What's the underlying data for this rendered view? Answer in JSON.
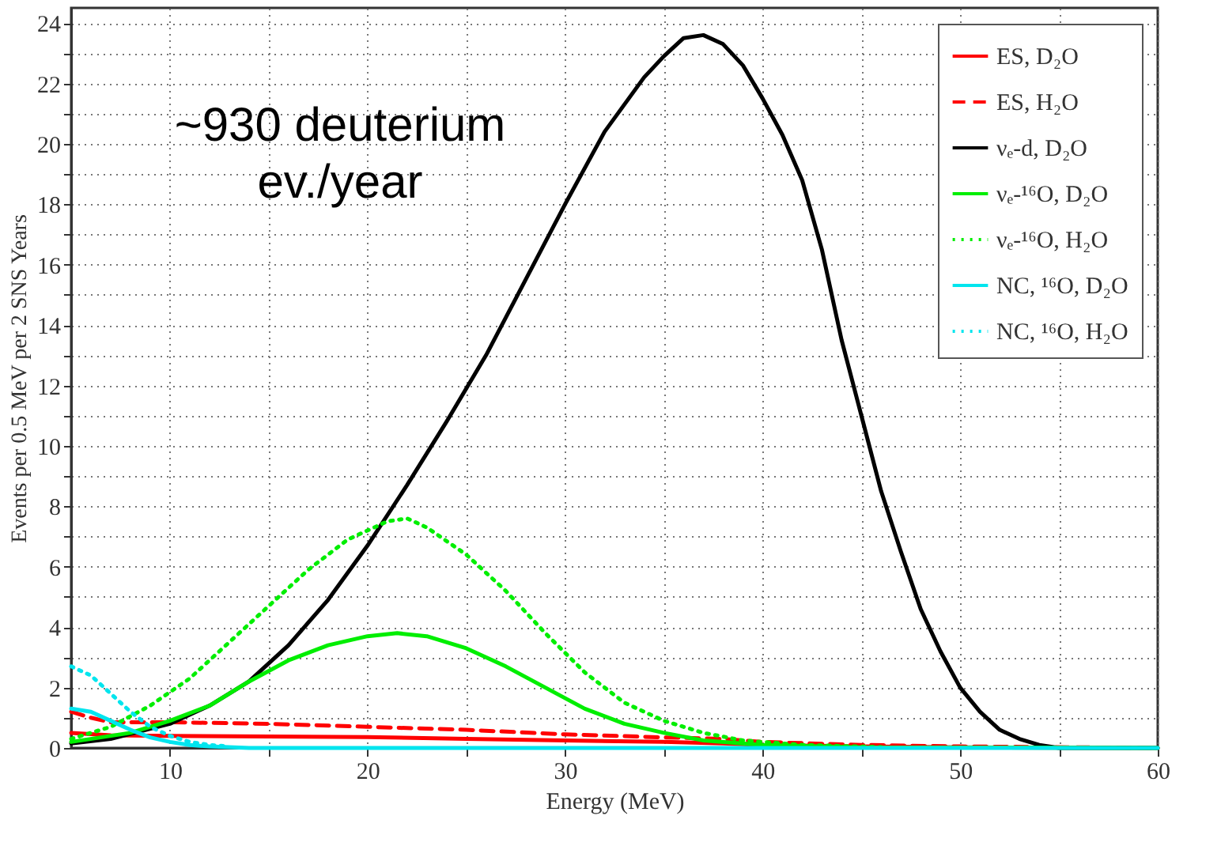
{
  "chart_data": {
    "type": "line",
    "xlabel": "Energy (MeV)",
    "ylabel": "Events per 0.5 MeV per 2 SNS Years",
    "annotations": [
      "~930 deuterium\nev./year"
    ],
    "xlim": [
      5,
      60
    ],
    "ylim": [
      0,
      24.5
    ],
    "xticks": [
      10,
      {
        "value": 15,
        "label": null
      },
      20,
      {
        "value": 25,
        "label": null
      },
      30,
      {
        "value": 35,
        "label": null
      },
      40,
      {
        "value": 45,
        "label": null
      },
      50,
      {
        "value": 55,
        "label": null
      },
      60
    ],
    "yticks": [
      0,
      {
        "value": 1,
        "label": null
      },
      2,
      {
        "value": 3,
        "label": null
      },
      4,
      {
        "value": 5,
        "label": null
      },
      6,
      {
        "value": 7,
        "label": null
      },
      8,
      {
        "value": 9,
        "label": null
      },
      10,
      {
        "value": 11,
        "label": null
      },
      12,
      {
        "value": 13,
        "label": null
      },
      14,
      {
        "value": 15,
        "label": null
      },
      16,
      {
        "value": 17,
        "label": null
      },
      18,
      {
        "value": 19,
        "label": null
      },
      20,
      {
        "value": 21,
        "label": null
      },
      22,
      {
        "value": 23,
        "label": null
      },
      24
    ],
    "grid": true,
    "legend": "top right",
    "series": [
      {
        "name": "ES, D₂O",
        "color": "#ff0000",
        "line_style": "solid",
        "x": [
          5,
          7,
          10,
          15,
          20,
          25,
          30,
          35,
          38,
          40,
          45,
          50,
          60
        ],
        "values": [
          0.5,
          0.42,
          0.4,
          0.38,
          0.36,
          0.3,
          0.25,
          0.2,
          0.15,
          0.1,
          0.05,
          0.02,
          0
        ]
      },
      {
        "name": "ES, H₂O",
        "color": "#ff0000",
        "line_style": "dashed",
        "x": [
          5,
          6,
          7,
          10,
          15,
          20,
          25,
          30,
          35,
          38,
          40,
          45,
          50,
          60
        ],
        "values": [
          1.2,
          1.0,
          0.85,
          0.85,
          0.8,
          0.7,
          0.6,
          0.45,
          0.35,
          0.3,
          0.2,
          0.1,
          0.05,
          0
        ]
      },
      {
        "name": "νₑ-d, D₂O",
        "color": "#000000",
        "line_style": "solid",
        "x": [
          5,
          7,
          10,
          12,
          14,
          16,
          18,
          20,
          22,
          24,
          26,
          28,
          30,
          32,
          34,
          35,
          36,
          37,
          38,
          39,
          40,
          41,
          42,
          43,
          44,
          45,
          46,
          47,
          48,
          49,
          50,
          51,
          52,
          53,
          54,
          55,
          60
        ],
        "values": [
          0.15,
          0.3,
          0.8,
          1.4,
          2.2,
          3.4,
          4.9,
          6.7,
          8.7,
          10.8,
          13.0,
          15.5,
          18.0,
          20.4,
          22.2,
          22.9,
          23.5,
          23.6,
          23.3,
          22.6,
          21.5,
          20.3,
          18.8,
          16.5,
          13.5,
          11.0,
          8.5,
          6.5,
          4.6,
          3.2,
          2.0,
          1.2,
          0.6,
          0.3,
          0.1,
          0,
          0
        ]
      },
      {
        "name": "νₑ-¹⁶O, D₂O",
        "color": "#00ee00",
        "line_style": "solid",
        "x": [
          5,
          8,
          10,
          12,
          14,
          16,
          18,
          20,
          21.5,
          23,
          25,
          27,
          29,
          31,
          33,
          35,
          37,
          40,
          45,
          60
        ],
        "values": [
          0.2,
          0.5,
          0.9,
          1.4,
          2.2,
          2.9,
          3.4,
          3.7,
          3.8,
          3.7,
          3.3,
          2.7,
          2.0,
          1.3,
          0.8,
          0.5,
          0.25,
          0.1,
          0.02,
          0
        ]
      },
      {
        "name": "νₑ-¹⁶O, H₂O",
        "color": "#00ee00",
        "line_style": "dotted",
        "x": [
          5,
          7,
          9,
          11,
          13,
          15,
          17,
          19,
          21,
          22,
          23,
          25,
          27,
          29,
          31,
          33,
          35,
          37,
          39,
          42,
          46
        ],
        "values": [
          0.3,
          0.7,
          1.4,
          2.3,
          3.5,
          4.7,
          5.9,
          6.9,
          7.5,
          7.6,
          7.3,
          6.4,
          5.2,
          3.8,
          2.5,
          1.5,
          0.9,
          0.5,
          0.25,
          0.1,
          0.03
        ]
      },
      {
        "name": "NC, ¹⁶O, D₂O",
        "color": "#00e5ee",
        "line_style": "solid",
        "x": [
          5,
          6,
          7,
          8,
          9,
          10,
          11,
          12,
          14,
          60
        ],
        "values": [
          1.3,
          1.2,
          0.9,
          0.6,
          0.35,
          0.2,
          0.1,
          0.05,
          0,
          0
        ]
      },
      {
        "name": "NC, ¹⁶O, H₂O",
        "color": "#00e5ee",
        "line_style": "dotted",
        "x": [
          5,
          6,
          7,
          8,
          9,
          10,
          11,
          12,
          13
        ],
        "values": [
          2.7,
          2.4,
          1.8,
          1.2,
          0.7,
          0.4,
          0.2,
          0.1,
          0.05
        ]
      }
    ]
  }
}
